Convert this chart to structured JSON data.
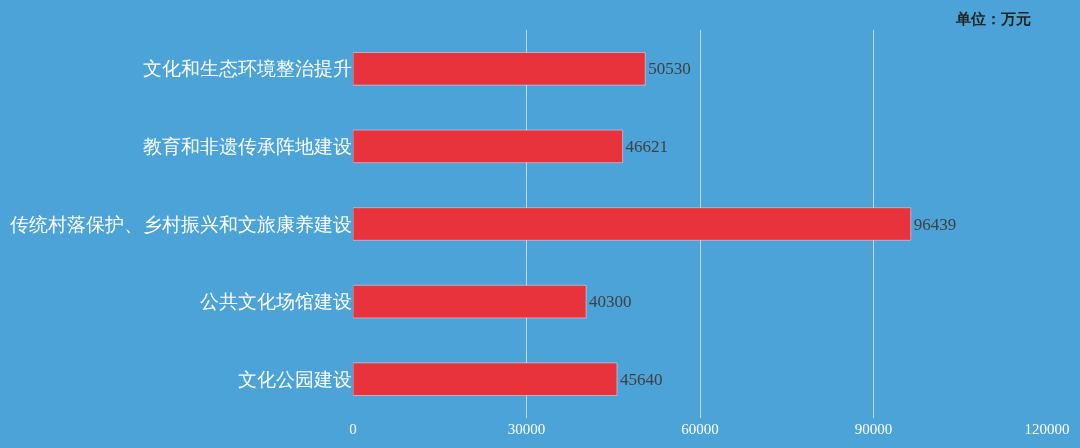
{
  "chart_data": {
    "type": "bar",
    "orientation": "horizontal",
    "categories": [
      "文化和生态环境整治提升",
      "教育和非遗传承阵地建设",
      "传统村落保护、乡村振兴和文旅康养建设",
      "公共文化场馆建设",
      "文化公园建设"
    ],
    "values": [
      50530,
      46621,
      96439,
      40300,
      45640
    ],
    "color": "#e8323c",
    "xlim": [
      0,
      120000
    ],
    "xticks": [
      0,
      30000,
      60000,
      90000,
      120000
    ],
    "grid": "x",
    "data_labels": true,
    "legend": false,
    "annotations": [
      "单位：万元"
    ]
  }
}
